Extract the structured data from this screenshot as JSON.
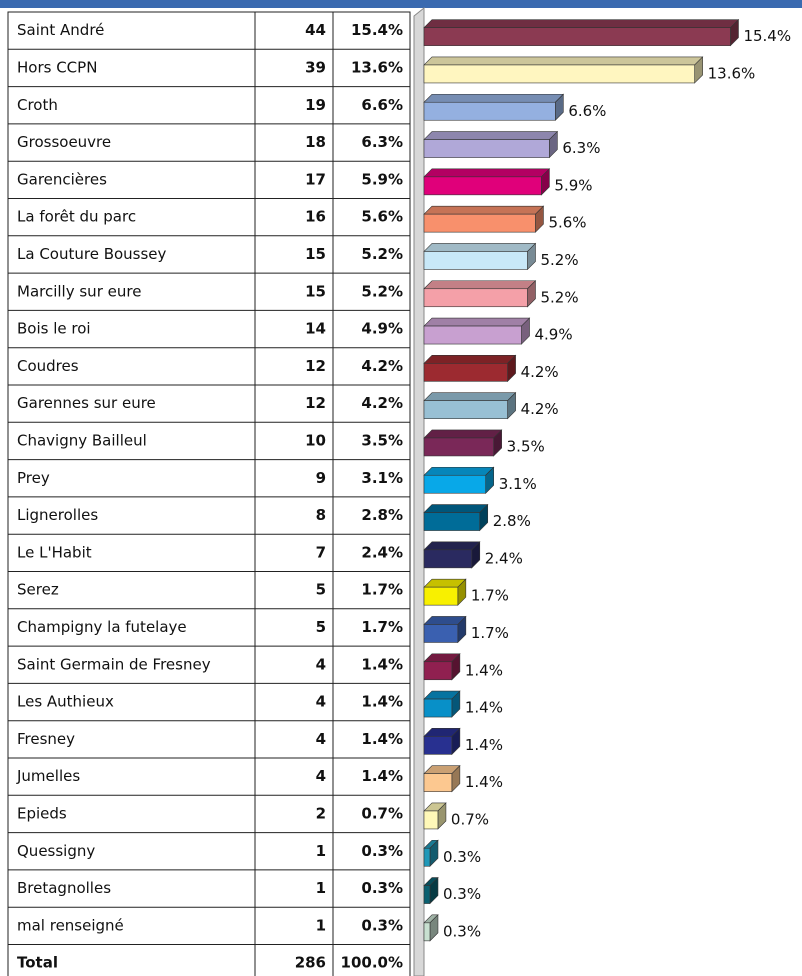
{
  "chart_data": {
    "type": "bar",
    "orientation": "horizontal",
    "categories": [
      "Saint André",
      "Hors CCPN",
      "Croth",
      "Grossoeuvre",
      "Garencières",
      "La forêt du parc",
      "La Couture Boussey",
      "Marcilly sur eure",
      "Bois le roi",
      "Coudres",
      "Garennes sur eure",
      "Chavigny Bailleul",
      "Prey",
      "Lignerolles",
      "Le L'Habit",
      "Serez",
      "Champigny la futelaye",
      "Saint Germain de Fresney",
      "Les Authieux",
      "Fresney",
      "Jumelles",
      "Epieds",
      "Quessigny",
      "Bretagnolles",
      "mal renseigné"
    ],
    "counts": [
      44,
      39,
      19,
      18,
      17,
      16,
      15,
      15,
      14,
      12,
      12,
      10,
      9,
      8,
      7,
      5,
      5,
      4,
      4,
      4,
      4,
      2,
      1,
      1,
      1
    ],
    "values": [
      15.4,
      13.6,
      6.6,
      6.3,
      5.9,
      5.6,
      5.2,
      5.2,
      4.9,
      4.2,
      4.2,
      3.5,
      3.1,
      2.8,
      2.4,
      1.7,
      1.7,
      1.4,
      1.4,
      1.4,
      1.4,
      0.7,
      0.3,
      0.3,
      0.3
    ],
    "value_labels": [
      "15.4%",
      "13.6%",
      "6.6%",
      "6.3%",
      "5.9%",
      "5.6%",
      "5.2%",
      "5.2%",
      "4.9%",
      "4.2%",
      "4.2%",
      "3.5%",
      "3.1%",
      "2.8%",
      "2.4%",
      "1.7%",
      "1.7%",
      "1.4%",
      "1.4%",
      "1.4%",
      "1.4%",
      "0.7%",
      "0.3%",
      "0.3%",
      "0.3%"
    ],
    "colors": [
      "#8b3a52",
      "#fff6c0",
      "#94b0e0",
      "#b0a8d8",
      "#e0007a",
      "#f8906c",
      "#c8e8f8",
      "#f4a0a8",
      "#c8a0d0",
      "#9c2a30",
      "#98c0d4",
      "#7a2858",
      "#08a8e8",
      "#006c98",
      "#2a2a60",
      "#f8f000",
      "#3a60b0",
      "#902050",
      "#0890c8",
      "#283090",
      "#fcc890",
      "#fff8b8",
      "#2098b8",
      "#0a6070",
      "#c8e0d0"
    ],
    "total_label": "Total",
    "total_count": 286,
    "total_value_label": "100.0%"
  }
}
